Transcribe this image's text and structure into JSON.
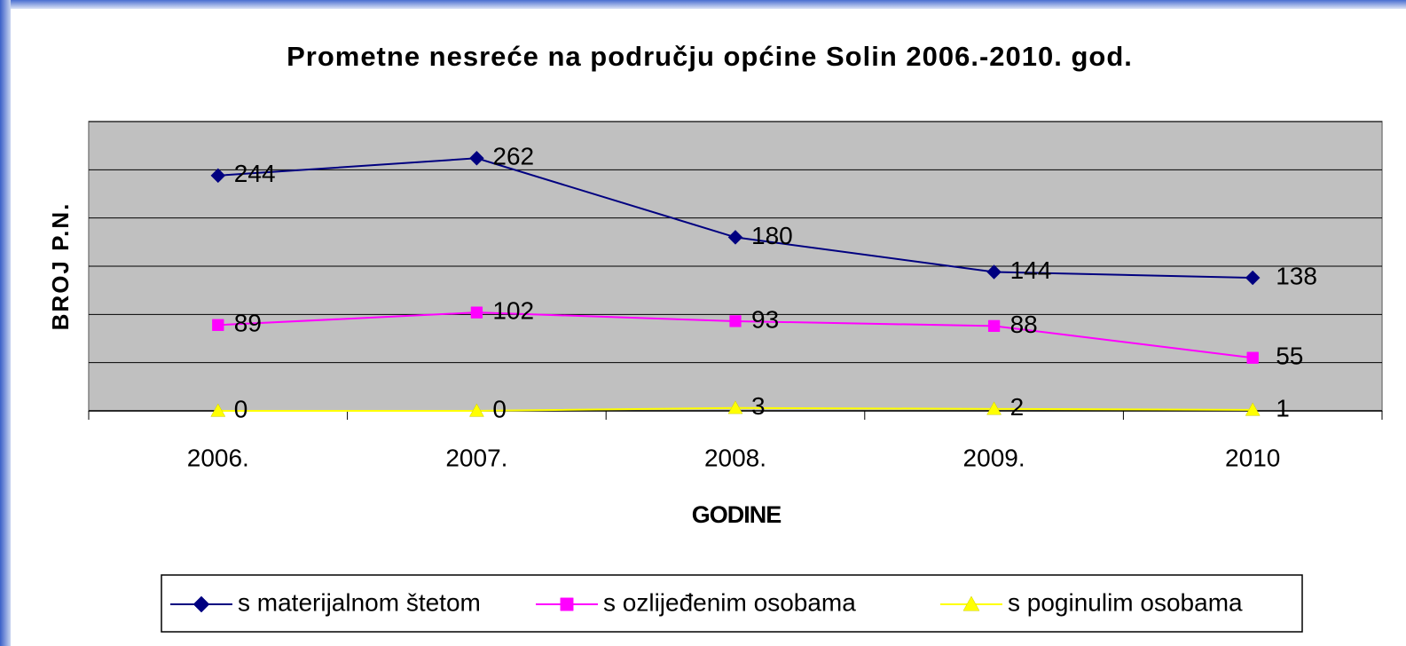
{
  "chart_data": {
    "type": "line",
    "title": "Prometne nesreće na području općine Solin 2006.-2010. god.",
    "x_label": "GODINE",
    "y_label": "BROJ P.N.",
    "categories": [
      "2006.",
      "2007.",
      "2008.",
      "2009.",
      "2010"
    ],
    "series": [
      {
        "name": "s materijalnom štetom",
        "color": "#000080",
        "marker": "diamond",
        "values": [
          244,
          262,
          180,
          144,
          138
        ]
      },
      {
        "name": "s ozlijeđenim osobama",
        "color": "#ff00ff",
        "marker": "square",
        "values": [
          89,
          102,
          93,
          88,
          55
        ]
      },
      {
        "name": "s poginulim osobama",
        "color": "#ffff00",
        "marker": "triangle",
        "values": [
          0,
          0,
          3,
          2,
          1
        ]
      }
    ],
    "ylim": [
      0,
      300
    ],
    "yticks": [
      0,
      50,
      100,
      150,
      200,
      250,
      300
    ],
    "grid": true,
    "legend": "bottom"
  }
}
